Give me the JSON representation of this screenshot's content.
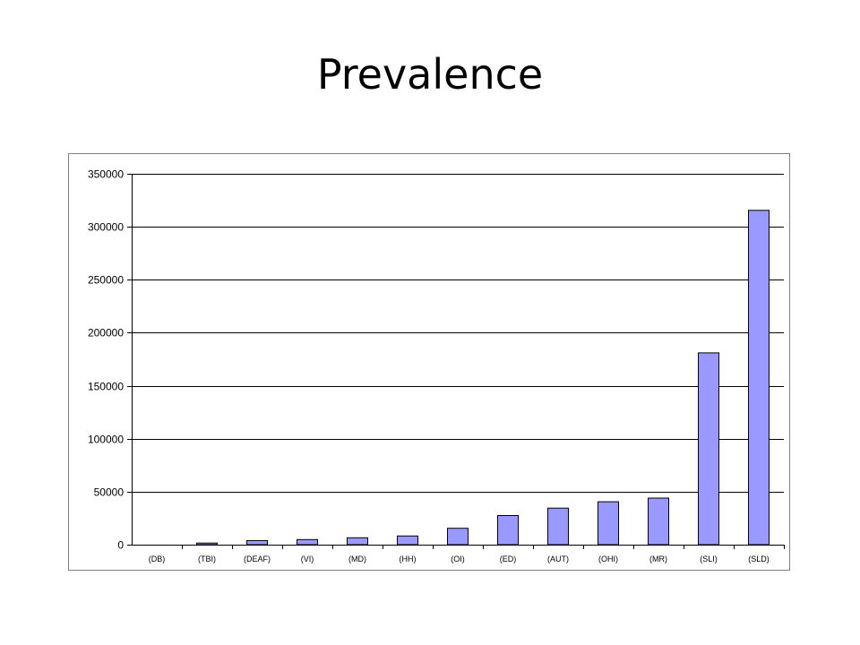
{
  "slide": {
    "title": "Prevalence"
  },
  "chart_data": {
    "type": "bar",
    "categories": [
      "(DB)",
      "(TBI)",
      "(DEAF)",
      "(VI)",
      "(MD)",
      "(HH)",
      "(OI)",
      "(ED)",
      "(AUT)",
      "(OHI)",
      "(MR)",
      "(SLI)",
      "(SLD)"
    ],
    "values": [
      0,
      1500,
      3800,
      4800,
      6500,
      8200,
      15500,
      27500,
      34500,
      40500,
      44000,
      181000,
      315500
    ],
    "ylim": [
      0,
      350000
    ],
    "yticks": [
      0,
      50000,
      100000,
      150000,
      200000,
      250000,
      300000,
      350000
    ],
    "grid": true,
    "legend": "none",
    "bar_color": "#9999ff",
    "bar_edge_color": "#000000"
  }
}
